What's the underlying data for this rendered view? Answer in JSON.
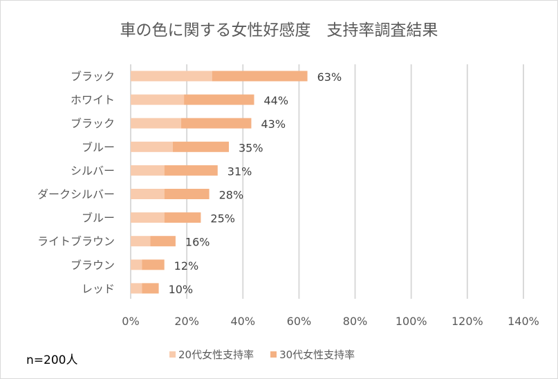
{
  "chart_data": {
    "type": "bar",
    "orientation": "horizontal",
    "stacked": true,
    "title": "車の色に関する女性好感度　支持率調査結果",
    "categories": [
      "ブラック",
      "ホワイト",
      "ブラック",
      "ブルー",
      "シルバー",
      "ダークシルバー",
      "ブルー",
      "ライトブラウン",
      "ブラウン",
      "レッド"
    ],
    "series": [
      {
        "name": "20代女性支持率",
        "color": "#f8cbad",
        "values": [
          29,
          19,
          18,
          15,
          12,
          12,
          12,
          7,
          4,
          4
        ]
      },
      {
        "name": "30代女性支持率",
        "color": "#f4b183",
        "values": [
          34,
          25,
          25,
          20,
          19,
          16,
          13,
          9,
          8,
          6
        ]
      }
    ],
    "total_labels": [
      "63%",
      "44%",
      "43%",
      "35%",
      "31%",
      "28%",
      "25%",
      "16%",
      "12%",
      "10%"
    ],
    "xlim": [
      0,
      140
    ],
    "xticks": [
      0,
      20,
      40,
      60,
      80,
      100,
      120,
      140
    ],
    "xtick_labels": [
      "0%",
      "20%",
      "40%",
      "60%",
      "80%",
      "100%",
      "120%",
      "140%"
    ],
    "grid": true,
    "legend_position": "bottom",
    "annotation": "n=200人"
  }
}
